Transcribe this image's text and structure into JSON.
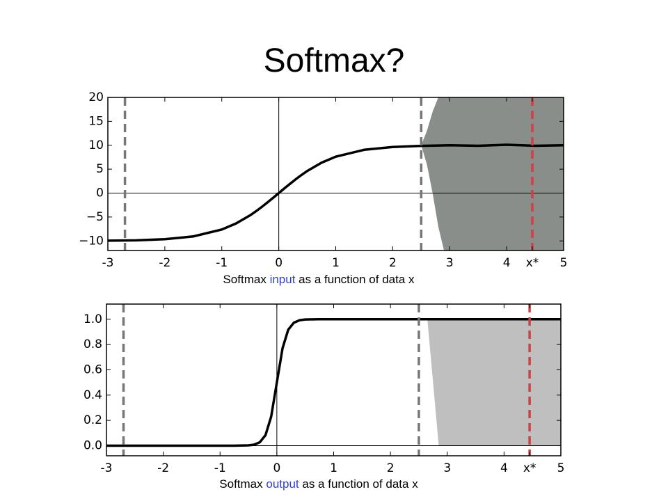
{
  "title": "Softmax?",
  "chart_data": [
    {
      "type": "line",
      "caption": {
        "before": "Softmax",
        "highlight": "input",
        "after": "as a function of data x"
      },
      "xlim": [
        -3,
        5
      ],
      "ylim": [
        -12,
        20
      ],
      "xticks": [
        -3,
        -2,
        -1,
        0,
        1,
        2,
        3,
        4,
        {
          "value": 4.45,
          "label": "x*"
        },
        5
      ],
      "yticks": [
        20,
        15,
        10,
        5,
        0,
        {
          "value": -5,
          "label": "−5"
        },
        {
          "value": -10,
          "label": "−10"
        }
      ],
      "x": [
        -3,
        -2.5,
        -2,
        -1.5,
        -1,
        -0.75,
        -0.5,
        -0.4,
        -0.3,
        -0.2,
        -0.1,
        0,
        0.1,
        0.2,
        0.3,
        0.4,
        0.5,
        0.75,
        1,
        1.5,
        2,
        2.5,
        3,
        3.5,
        4,
        4.5,
        5
      ],
      "series": [
        {
          "color": "#000000",
          "values": [
            -9.95,
            -9.87,
            -9.64,
            -9.05,
            -7.62,
            -6.35,
            -4.62,
            -3.8,
            -2.91,
            -1.97,
            -1.0,
            0,
            1.0,
            1.97,
            2.91,
            3.8,
            4.62,
            6.35,
            7.62,
            9.05,
            9.64,
            9.87,
            10.0,
            9.9,
            10.1,
            9.9,
            10.0
          ]
        }
      ],
      "noise": {
        "color": "#7d827d",
        "x": [
          2.5,
          2.6,
          2.7,
          2.8,
          2.9,
          5
        ],
        "upper": [
          10,
          13,
          17,
          20,
          20,
          20
        ],
        "lower": [
          10,
          6,
          0,
          -7,
          -12,
          -12
        ]
      },
      "vlines": [
        {
          "x": -2.7,
          "color": "#777777"
        },
        {
          "x": 2.5,
          "color": "#777777"
        },
        {
          "x": 4.45,
          "color": "#d04040"
        }
      ]
    },
    {
      "type": "line",
      "caption": {
        "before": "Softmax",
        "highlight": "output",
        "after": "as a function of data x"
      },
      "xlim": [
        -3,
        5
      ],
      "ylim": [
        -0.08,
        1.12
      ],
      "xticks": [
        -3,
        -2,
        -1,
        0,
        1,
        2,
        3,
        4,
        {
          "value": 4.45,
          "label": "x*"
        },
        5
      ],
      "yticks": [
        {
          "value": 1.0,
          "label": "1.0"
        },
        0.8,
        0.6,
        0.4,
        0.2,
        {
          "value": 0.0,
          "label": "0.0"
        }
      ],
      "x": [
        -3,
        -2.5,
        -2,
        -1.5,
        -1,
        -0.75,
        -0.5,
        -0.4,
        -0.3,
        -0.2,
        -0.1,
        0,
        0.1,
        0.2,
        0.3,
        0.4,
        0.5,
        0.75,
        1,
        1.5,
        2,
        2.5,
        3,
        3.5,
        4,
        4.5,
        5
      ],
      "series": [
        {
          "color": "#000000",
          "values": [
            0,
            0,
            0,
            0,
            0,
            0,
            0.0025,
            0.008,
            0.027,
            0.083,
            0.23,
            0.5,
            0.77,
            0.917,
            0.973,
            0.992,
            0.998,
            1,
            1,
            1,
            1,
            1,
            1,
            1,
            1,
            1,
            1
          ]
        }
      ],
      "noise": {
        "color": "#b8b8b8",
        "x": [
          2.65,
          2.75,
          2.85,
          5
        ],
        "upper": [
          1,
          1,
          1,
          1
        ],
        "lower": [
          1,
          0.5,
          0,
          0
        ]
      },
      "vlines": [
        {
          "x": -2.7,
          "color": "#777777"
        },
        {
          "x": 2.5,
          "color": "#777777"
        },
        {
          "x": 4.45,
          "color": "#d04040"
        }
      ]
    }
  ]
}
